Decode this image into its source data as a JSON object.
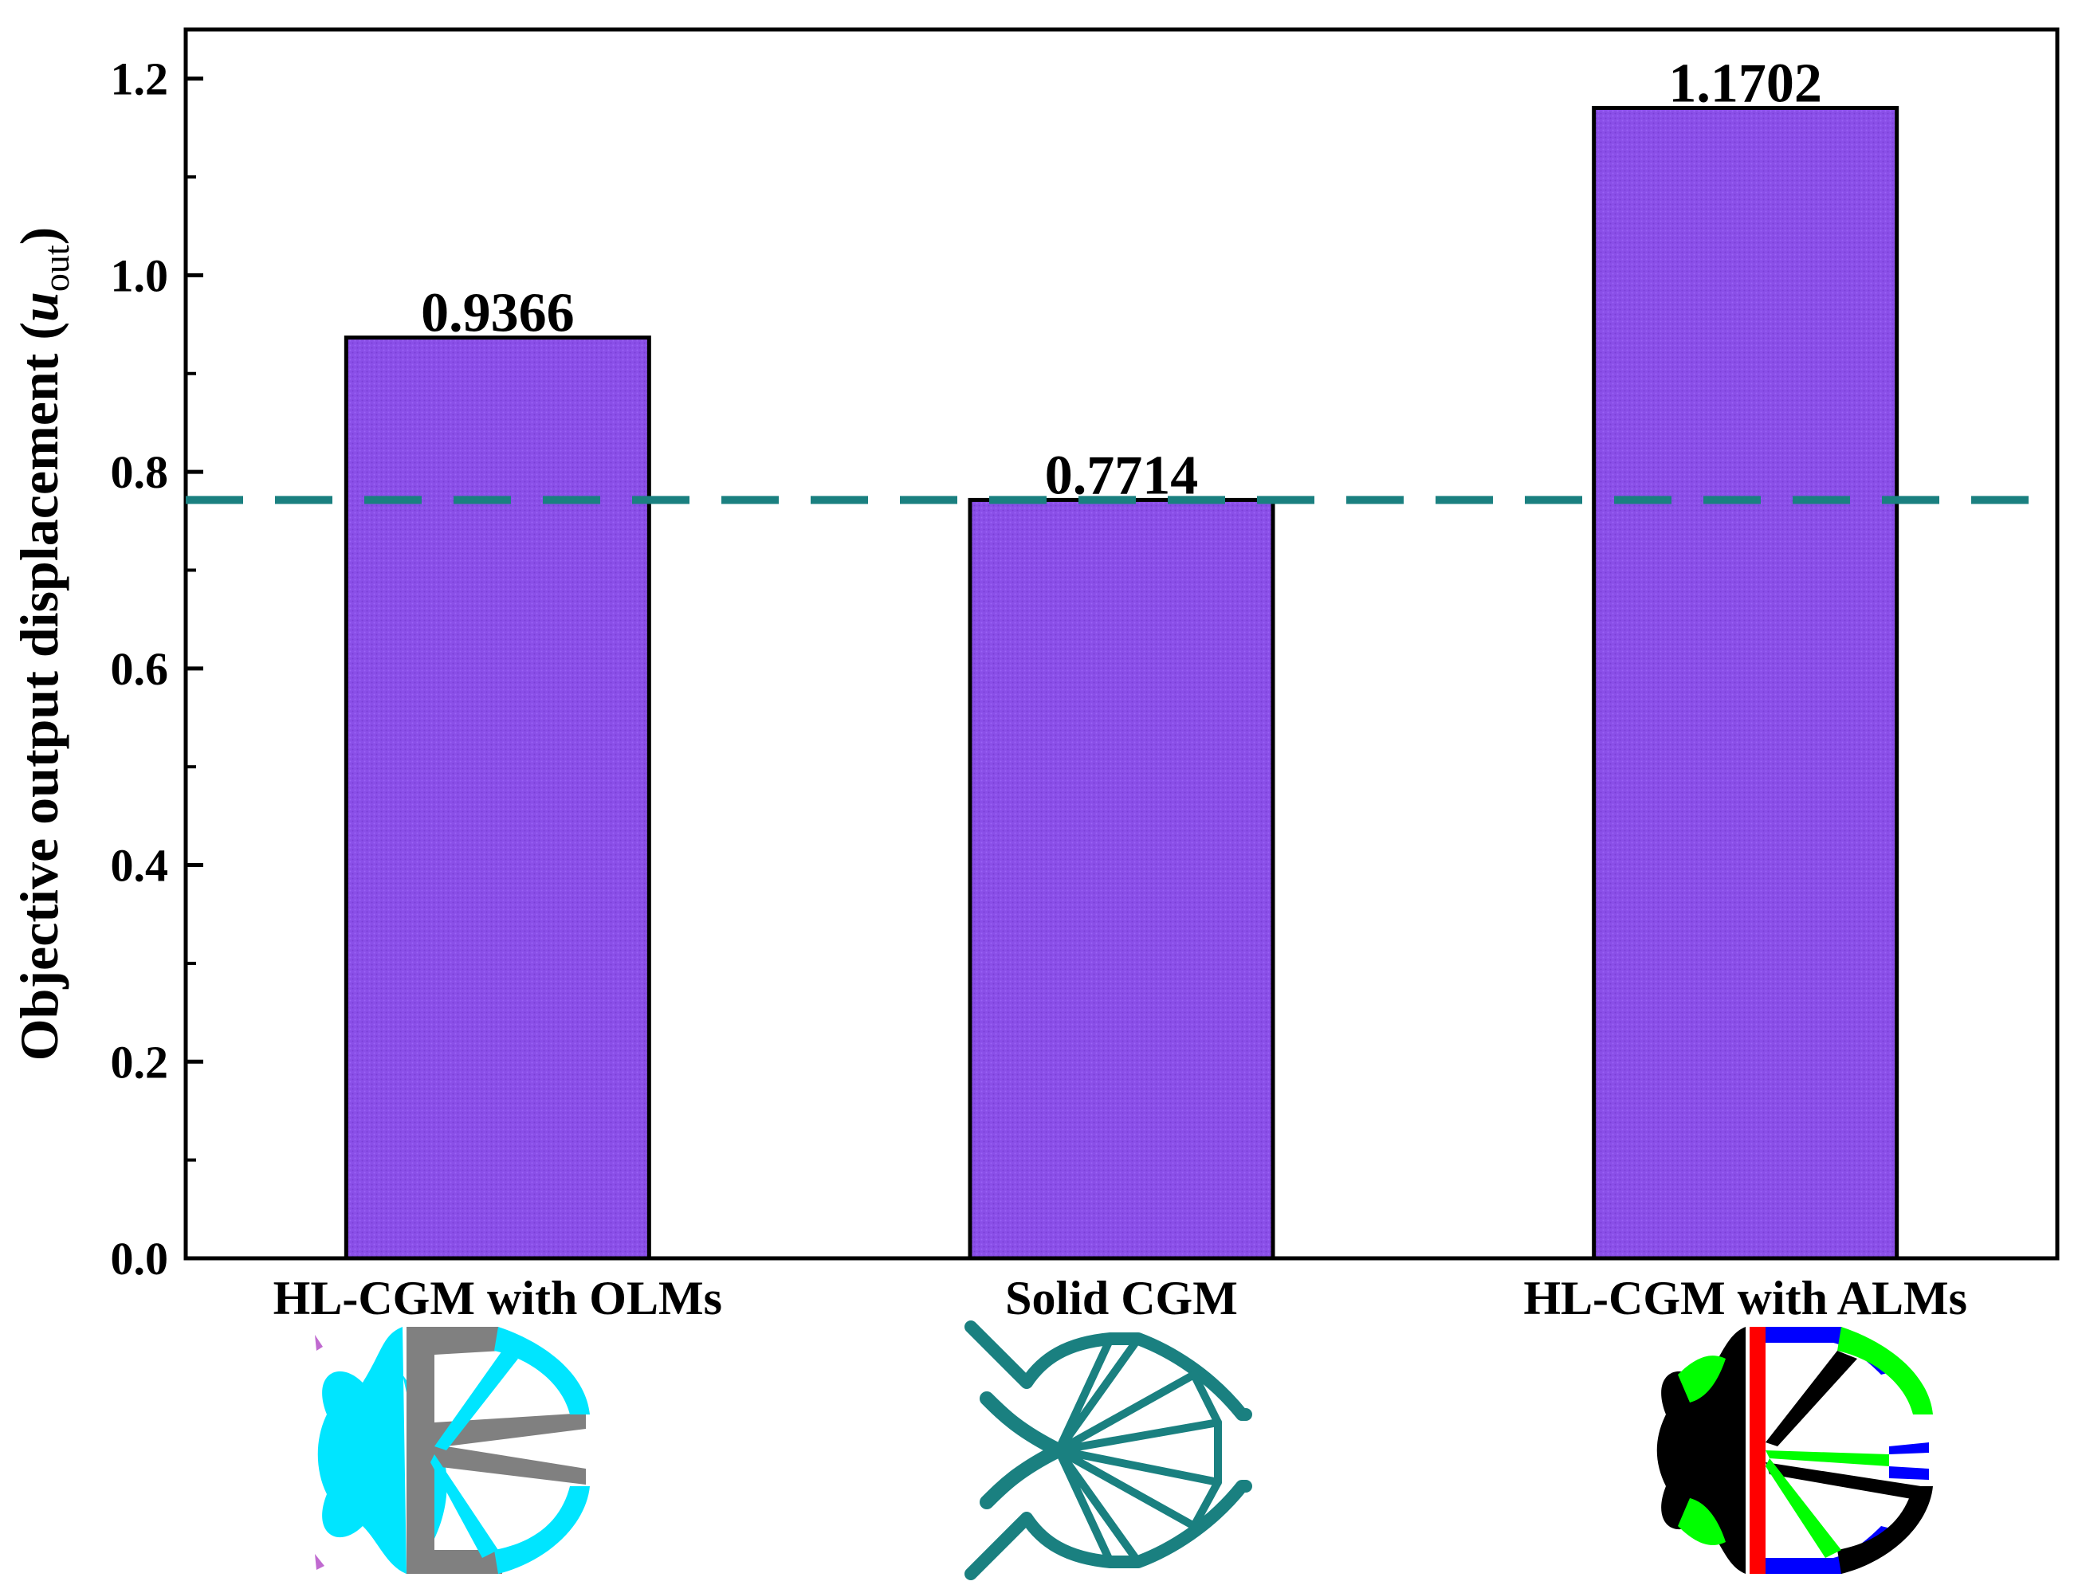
{
  "chart_data": {
    "type": "bar",
    "title": "",
    "xlabel": "",
    "ylabel": "Objective output displacement (",
    "ylabel_symbol": "u",
    "ylabel_subscript": "out",
    "ylabel_close": ")",
    "categories": [
      "HL-CGM with OLMs",
      "Solid CGM",
      "HL-CGM with ALMs"
    ],
    "values": [
      0.9366,
      0.7714,
      1.1702
    ],
    "value_labels": [
      "0.9366",
      "0.7714",
      "1.1702"
    ],
    "ylim": [
      0,
      1.25
    ],
    "yticks": [
      0.0,
      0.2,
      0.4,
      0.6,
      0.8,
      1.0,
      1.2
    ],
    "ytick_labels": [
      "0.0",
      "0.2",
      "0.4",
      "0.6",
      "0.8",
      "1.0",
      "1.2"
    ],
    "reference_line": {
      "value": 0.7714,
      "style": "dashed"
    },
    "grid": false,
    "colors": {
      "bar_fill": "#8a4fe8",
      "bar_edge": "#000000",
      "reference_line": "#1a8080"
    }
  },
  "thumbnails": [
    {
      "name": "olm-structure",
      "colors": [
        "#00e5ff",
        "#808080",
        "#c06ad0"
      ]
    },
    {
      "name": "solid-structure",
      "colors": [
        "#1a8080"
      ]
    },
    {
      "name": "alm-structure",
      "colors": [
        "#000000",
        "#00ff00",
        "#ff0000",
        "#0000ff"
      ]
    }
  ]
}
